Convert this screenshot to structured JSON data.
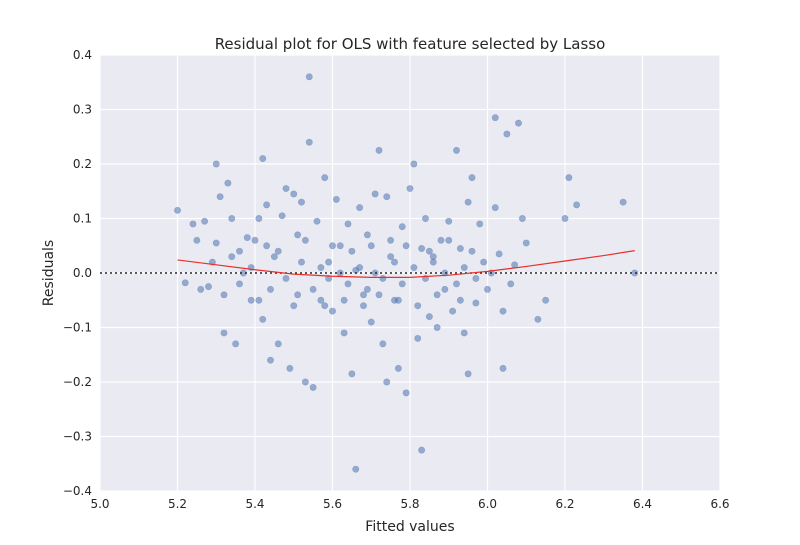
{
  "chart_data": {
    "type": "scatter",
    "title": "Residual plot for OLS with feature selected by Lasso",
    "xlabel": "Fitted values",
    "ylabel": "Residuals",
    "xlim": [
      5.0,
      6.6
    ],
    "ylim": [
      -0.4,
      0.4
    ],
    "xticks": [
      5.0,
      5.2,
      5.4,
      5.6,
      5.8,
      6.0,
      6.2,
      6.4,
      6.6
    ],
    "yticks": [
      -0.4,
      -0.3,
      -0.2,
      -0.1,
      0.0,
      0.1,
      0.2,
      0.3,
      0.4
    ],
    "xtick_labels": [
      "5.0",
      "5.2",
      "5.4",
      "5.6",
      "5.8",
      "6.0",
      "6.2",
      "6.4",
      "6.6"
    ],
    "ytick_labels": [
      "−0.4",
      "−0.3",
      "−0.2",
      "−0.1",
      "0.0",
      "0.1",
      "0.2",
      "0.3",
      "0.4"
    ],
    "grid": true,
    "background_color": "#eaeaf2",
    "point_color": "#4c72b0",
    "lowess_color": "#e8302a",
    "reference_line": {
      "y": 0.0,
      "style": "dotted",
      "color": "#262626"
    },
    "lowess": {
      "x": [
        5.2,
        5.3,
        5.4,
        5.5,
        5.6,
        5.7,
        5.8,
        5.9,
        6.0,
        6.1,
        6.2,
        6.3,
        6.38
      ],
      "y": [
        0.024,
        0.015,
        0.006,
        -0.002,
        -0.006,
        -0.008,
        -0.008,
        -0.004,
        0.003,
        0.012,
        0.022,
        0.032,
        0.041
      ]
    },
    "points": [
      [
        5.2,
        0.115
      ],
      [
        5.22,
        -0.018
      ],
      [
        5.24,
        0.09
      ],
      [
        5.25,
        0.06
      ],
      [
        5.27,
        0.095
      ],
      [
        5.28,
        -0.025
      ],
      [
        5.3,
        0.2
      ],
      [
        5.3,
        0.055
      ],
      [
        5.31,
        0.14
      ],
      [
        5.32,
        -0.11
      ],
      [
        5.33,
        0.165
      ],
      [
        5.34,
        0.1
      ],
      [
        5.35,
        -0.13
      ],
      [
        5.36,
        0.04
      ],
      [
        5.37,
        0.0
      ],
      [
        5.38,
        0.065
      ],
      [
        5.39,
        -0.05
      ],
      [
        5.4,
        0.06
      ],
      [
        5.41,
        0.1
      ],
      [
        5.42,
        -0.085
      ],
      [
        5.42,
        0.21
      ],
      [
        5.43,
        0.125
      ],
      [
        5.44,
        -0.16
      ],
      [
        5.45,
        0.03
      ],
      [
        5.46,
        -0.13
      ],
      [
        5.47,
        0.105
      ],
      [
        5.48,
        0.155
      ],
      [
        5.49,
        -0.175
      ],
      [
        5.5,
        0.145
      ],
      [
        5.5,
        -0.06
      ],
      [
        5.51,
        0.07
      ],
      [
        5.52,
        0.13
      ],
      [
        5.53,
        -0.2
      ],
      [
        5.54,
        0.24
      ],
      [
        5.54,
        0.36
      ],
      [
        5.55,
        -0.21
      ],
      [
        5.56,
        0.095
      ],
      [
        5.57,
        -0.05
      ],
      [
        5.58,
        0.175
      ],
      [
        5.59,
        0.02
      ],
      [
        5.6,
        -0.07
      ],
      [
        5.61,
        0.135
      ],
      [
        5.62,
        0.05
      ],
      [
        5.63,
        -0.11
      ],
      [
        5.64,
        0.09
      ],
      [
        5.65,
        -0.185
      ],
      [
        5.66,
        0.005
      ],
      [
        5.66,
        -0.36
      ],
      [
        5.67,
        0.12
      ],
      [
        5.68,
        -0.04
      ],
      [
        5.69,
        0.07
      ],
      [
        5.7,
        -0.09
      ],
      [
        5.71,
        0.145
      ],
      [
        5.72,
        0.225
      ],
      [
        5.73,
        -0.13
      ],
      [
        5.74,
        0.14
      ],
      [
        5.74,
        -0.2
      ],
      [
        5.75,
        0.03
      ],
      [
        5.76,
        -0.05
      ],
      [
        5.77,
        -0.175
      ],
      [
        5.78,
        0.085
      ],
      [
        5.79,
        -0.22
      ],
      [
        5.8,
        0.155
      ],
      [
        5.81,
        0.2
      ],
      [
        5.82,
        -0.12
      ],
      [
        5.83,
        0.045
      ],
      [
        5.83,
        -0.325
      ],
      [
        5.84,
        0.1
      ],
      [
        5.85,
        -0.08
      ],
      [
        5.86,
        0.02
      ],
      [
        5.87,
        -0.1
      ],
      [
        5.88,
        0.06
      ],
      [
        5.89,
        -0.03
      ],
      [
        5.9,
        0.095
      ],
      [
        5.91,
        -0.07
      ],
      [
        5.92,
        0.225
      ],
      [
        5.93,
        0.045
      ],
      [
        5.94,
        -0.11
      ],
      [
        5.95,
        0.13
      ],
      [
        5.95,
        -0.185
      ],
      [
        5.96,
        0.175
      ],
      [
        5.97,
        -0.055
      ],
      [
        5.98,
        0.09
      ],
      [
        6.0,
        -0.03
      ],
      [
        6.02,
        0.285
      ],
      [
        6.02,
        0.12
      ],
      [
        6.03,
        0.035
      ],
      [
        6.04,
        -0.07
      ],
      [
        6.04,
        -0.175
      ],
      [
        6.05,
        0.255
      ],
      [
        6.06,
        -0.02
      ],
      [
        6.07,
        0.015
      ],
      [
        6.08,
        0.275
      ],
      [
        6.09,
        0.1
      ],
      [
        6.1,
        0.055
      ],
      [
        6.13,
        -0.085
      ],
      [
        6.15,
        -0.05
      ],
      [
        6.2,
        0.1
      ],
      [
        6.21,
        0.175
      ],
      [
        6.23,
        0.125
      ],
      [
        6.35,
        0.13
      ],
      [
        6.38,
        0.0
      ],
      [
        5.29,
        0.02
      ],
      [
        5.32,
        -0.04
      ],
      [
        5.36,
        -0.02
      ],
      [
        5.39,
        0.01
      ],
      [
        5.44,
        -0.03
      ],
      [
        5.46,
        0.04
      ],
      [
        5.48,
        -0.01
      ],
      [
        5.52,
        0.02
      ],
      [
        5.55,
        -0.03
      ],
      [
        5.57,
        0.01
      ],
      [
        5.59,
        -0.01
      ],
      [
        5.62,
        0.0
      ],
      [
        5.64,
        -0.02
      ],
      [
        5.67,
        0.01
      ],
      [
        5.69,
        -0.03
      ],
      [
        5.71,
        0.0
      ],
      [
        5.73,
        -0.01
      ],
      [
        5.76,
        0.02
      ],
      [
        5.78,
        -0.02
      ],
      [
        5.81,
        0.01
      ],
      [
        5.84,
        -0.01
      ],
      [
        5.86,
        0.03
      ],
      [
        5.89,
        0.0
      ],
      [
        5.92,
        -0.02
      ],
      [
        5.94,
        0.01
      ],
      [
        5.97,
        -0.01
      ],
      [
        5.99,
        0.02
      ],
      [
        6.01,
        0.0
      ],
      [
        5.26,
        -0.03
      ],
      [
        5.34,
        0.03
      ],
      [
        5.41,
        -0.05
      ],
      [
        5.43,
        0.05
      ],
      [
        5.51,
        -0.04
      ],
      [
        5.53,
        0.06
      ],
      [
        5.58,
        -0.06
      ],
      [
        5.6,
        0.05
      ],
      [
        5.63,
        -0.05
      ],
      [
        5.65,
        0.04
      ],
      [
        5.68,
        -0.06
      ],
      [
        5.7,
        0.05
      ],
      [
        5.72,
        -0.04
      ],
      [
        5.75,
        0.06
      ],
      [
        5.77,
        -0.05
      ],
      [
        5.79,
        0.05
      ],
      [
        5.82,
        -0.06
      ],
      [
        5.85,
        0.04
      ],
      [
        5.87,
        -0.04
      ],
      [
        5.9,
        0.06
      ],
      [
        5.93,
        -0.05
      ],
      [
        5.96,
        0.04
      ]
    ]
  }
}
